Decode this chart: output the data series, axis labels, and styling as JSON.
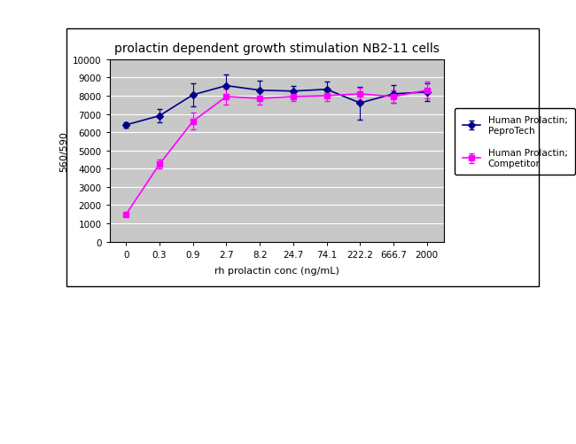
{
  "title": "prolactin dependent growth stimulation NB2-11 cells",
  "xlabel": "rh prolactin conc (ng/mL)",
  "ylabel": "560/590",
  "x_labels": [
    "0",
    "0.3",
    "0.9",
    "2.7",
    "8.2",
    "24.7",
    "74.1",
    "222.2",
    "666.7",
    "2000"
  ],
  "x_positions": [
    0,
    1,
    2,
    3,
    4,
    5,
    6,
    7,
    8,
    9
  ],
  "series1_name": "Human Prolactin;\nPeproTech",
  "series1_color": "#00008B",
  "series1_y": [
    6400,
    6900,
    8050,
    8550,
    8300,
    8250,
    8350,
    7600,
    8100,
    8200
  ],
  "series1_yerr": [
    150,
    350,
    650,
    600,
    500,
    300,
    400,
    900,
    500,
    500
  ],
  "series2_name": "Human Prolactin;\nCompetitor",
  "series2_color": "#FF00FF",
  "series2_y": [
    1500,
    4250,
    6600,
    7950,
    7850,
    7950,
    8000,
    8100,
    7950,
    8300
  ],
  "series2_yerr": [
    80,
    250,
    450,
    450,
    350,
    250,
    280,
    350,
    350,
    450
  ],
  "ylim": [
    0,
    10000
  ],
  "yticks": [
    0,
    1000,
    2000,
    3000,
    4000,
    5000,
    6000,
    7000,
    8000,
    9000,
    10000
  ],
  "bg_color": "#C8C8C8",
  "outer_bg": "#FFFFFF",
  "border_color": "#000000",
  "grid_color": "#FFFFFF",
  "title_fontsize": 10,
  "axis_fontsize": 8,
  "tick_fontsize": 7.5,
  "legend_fontsize": 7.5
}
